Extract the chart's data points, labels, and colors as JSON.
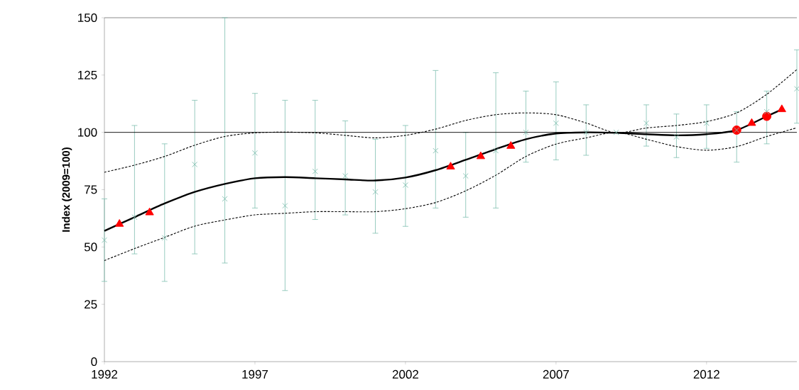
{
  "chart_data": {
    "type": "scatter",
    "ylabel": "Index (2009=100)",
    "xlim": [
      1992,
      2015
    ],
    "ylim": [
      0,
      150
    ],
    "xticks": [
      1992,
      1997,
      2002,
      2007,
      2012
    ],
    "yticks": [
      0,
      25,
      50,
      75,
      100,
      125,
      150
    ],
    "grid": false,
    "ref_lines": [
      {
        "axis": "y",
        "value": 100,
        "color": "#000000",
        "line_style": "solid"
      }
    ],
    "series": [
      {
        "color": "#7fbfb0",
        "marker": "cross",
        "x": [
          1992,
          1993,
          1994,
          1995,
          1996,
          1997,
          1998,
          1999,
          2000,
          2001,
          2002,
          2003,
          2004,
          2005,
          2006,
          2007,
          2008,
          2009,
          2010,
          2011,
          2012,
          2013,
          2014,
          2015
        ],
        "values": [
          53,
          63,
          54,
          86,
          71,
          91,
          68,
          83,
          81,
          74,
          77,
          92,
          81,
          92,
          100,
          104,
          100,
          100,
          104,
          98,
          104,
          101,
          109,
          119
        ],
        "errors": [
          [
            35,
            71
          ],
          [
            47,
            103
          ],
          [
            35,
            95
          ],
          [
            47,
            114
          ],
          [
            43,
            150
          ],
          [
            67,
            117
          ],
          [
            31,
            114
          ],
          [
            62,
            114
          ],
          [
            64,
            105
          ],
          [
            56,
            97
          ],
          [
            59,
            103
          ],
          [
            67,
            127
          ],
          [
            63,
            100
          ],
          [
            67,
            126
          ],
          [
            87,
            118
          ],
          [
            88,
            122
          ],
          [
            90,
            112
          ],
          null,
          [
            94,
            112
          ],
          [
            89,
            108
          ],
          [
            93,
            112
          ],
          [
            87,
            109
          ],
          [
            95,
            118
          ],
          [
            104,
            136
          ]
        ]
      },
      {
        "type": "line",
        "color": "#000000",
        "line_style": "solid",
        "marker": "none",
        "x": [
          1992,
          1993,
          1994,
          1995,
          1996,
          1997,
          1998,
          1999,
          2000,
          2001,
          2002,
          2003,
          2004,
          2005,
          2006,
          2007,
          2008,
          2009,
          2010,
          2011,
          2012,
          2013,
          2014,
          2014.5
        ],
        "values": [
          57,
          63,
          69,
          74,
          77.5,
          80,
          80.5,
          80,
          79.5,
          79,
          80.3,
          83.5,
          88,
          92.7,
          97,
          99.5,
          100,
          99.8,
          99.2,
          98.7,
          99.2,
          101,
          107,
          110
        ]
      },
      {
        "type": "line",
        "color": "#000000",
        "line_style": "dashed",
        "marker": "none",
        "x": [
          1992,
          1993,
          1994,
          1995,
          1996,
          1997,
          1998,
          1999,
          2000,
          2001,
          2002,
          2003,
          2004,
          2005,
          2006,
          2007,
          2008,
          2009,
          2010,
          2011,
          2012,
          2013,
          2014,
          2015
        ],
        "values": [
          82.6,
          85.7,
          89.5,
          94.4,
          98.2,
          99.8,
          100.1,
          99.8,
          98.7,
          97.6,
          98.7,
          101.4,
          105.2,
          107.7,
          108.5,
          107.7,
          104.1,
          99.8,
          101.9,
          103,
          104.7,
          108.5,
          116.6,
          127.4
        ]
      },
      {
        "type": "line",
        "color": "#000000",
        "line_style": "dashed",
        "marker": "none",
        "x": [
          1992,
          1993,
          1994,
          1995,
          1996,
          1997,
          1998,
          1999,
          2000,
          2001,
          2002,
          2003,
          2004,
          2005,
          2006,
          2007,
          2008,
          2009,
          2010,
          2011,
          2012,
          2013,
          2014,
          2015
        ],
        "values": [
          44.1,
          49.3,
          54.2,
          59.1,
          61.8,
          64,
          64.7,
          65.4,
          65.4,
          65.4,
          66.7,
          69.4,
          74.5,
          81.3,
          89.5,
          94.9,
          97.6,
          100,
          97,
          93.8,
          92.2,
          93.8,
          98.2,
          102
        ]
      },
      {
        "color": "#ff0000",
        "marker": "triangle",
        "x": [
          1992.5,
          1993.5,
          2003.5,
          2004.5,
          2005.5,
          2013.5,
          2014.5
        ],
        "values": [
          60,
          65,
          85,
          89.5,
          94,
          104,
          110
        ]
      },
      {
        "color": "#ff0000",
        "marker": "circle",
        "x": [
          2013,
          2014
        ],
        "values": [
          101,
          107
        ]
      }
    ]
  }
}
